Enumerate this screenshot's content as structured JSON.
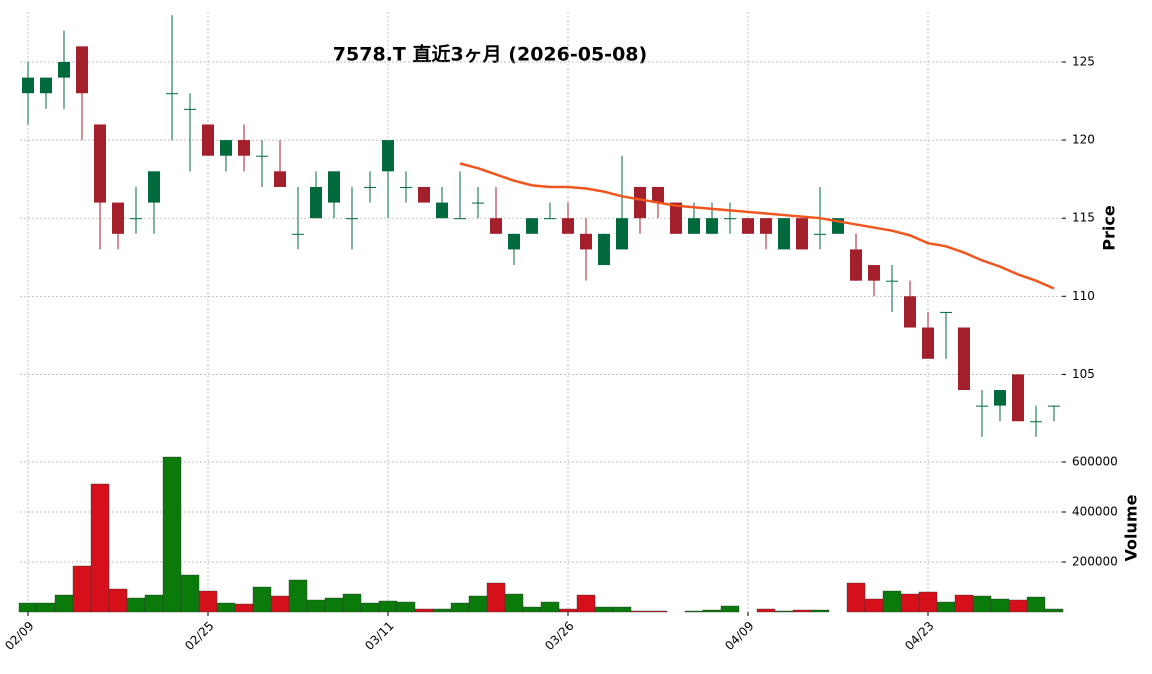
{
  "chart_data": {
    "type": "candlestick",
    "title": "7578.T  直近3ヶ月  (2026-05-08)",
    "categories": [
      "02/09",
      null,
      null,
      null,
      null,
      null,
      null,
      null,
      null,
      null,
      "02/25",
      null,
      null,
      null,
      null,
      null,
      null,
      null,
      null,
      null,
      "03/11",
      null,
      null,
      null,
      null,
      null,
      null,
      null,
      null,
      null,
      "03/26",
      null,
      null,
      null,
      null,
      null,
      null,
      null,
      null,
      null,
      "04/09",
      null,
      null,
      null,
      null,
      null,
      null,
      null,
      null,
      null,
      "04/23",
      null,
      null,
      null,
      null,
      null,
      null,
      null
    ],
    "open": [
      123,
      123,
      124,
      126,
      121,
      116,
      115,
      116,
      123,
      122,
      121,
      119,
      120,
      119,
      118,
      114,
      115,
      116,
      115,
      117,
      118,
      117,
      117,
      115,
      115,
      116,
      115,
      113,
      114,
      115,
      115,
      114,
      112,
      113,
      117,
      117,
      116,
      114,
      114,
      115,
      115,
      115,
      113,
      115,
      114,
      114,
      113,
      112,
      111,
      110,
      108,
      109,
      108,
      103,
      103,
      105,
      102,
      103
    ],
    "high": [
      125,
      124,
      127,
      126,
      121,
      116,
      117,
      118,
      128,
      123,
      121,
      120,
      121,
      120,
      120,
      117,
      118,
      118,
      117,
      118,
      120,
      118,
      117,
      117,
      118,
      117,
      117,
      114,
      115,
      116,
      116,
      115,
      114,
      119,
      117,
      117,
      116,
      116,
      116,
      116,
      115,
      115,
      115,
      115,
      117,
      115,
      114,
      112,
      112,
      111,
      109,
      109,
      108,
      104,
      104,
      105,
      103,
      103
    ],
    "low": [
      121,
      122,
      122,
      120,
      113,
      113,
      114,
      114,
      120,
      118,
      119,
      118,
      118,
      117,
      117,
      113,
      115,
      115,
      113,
      116,
      115,
      116,
      116,
      115,
      115,
      115,
      114,
      112,
      114,
      115,
      114,
      111,
      112,
      113,
      114,
      115,
      114,
      114,
      114,
      114,
      114,
      113,
      113,
      113,
      113,
      114,
      111,
      110,
      109,
      108,
      106,
      106,
      104,
      101,
      102,
      102,
      101,
      102
    ],
    "close": [
      124,
      124,
      125,
      123,
      116,
      114,
      115,
      118,
      123,
      122,
      119,
      120,
      119,
      119,
      117,
      114,
      117,
      118,
      115,
      117,
      120,
      117,
      116,
      116,
      115,
      116,
      114,
      114,
      115,
      115,
      114,
      113,
      114,
      115,
      115,
      116,
      114,
      115,
      115,
      115,
      114,
      114,
      115,
      113,
      114,
      115,
      111,
      111,
      111,
      108,
      106,
      109,
      104,
      103,
      104,
      102,
      102,
      103
    ],
    "ma": {
      "color": "#f0561e",
      "values": [
        null,
        null,
        null,
        null,
        null,
        null,
        null,
        null,
        null,
        null,
        null,
        null,
        null,
        null,
        null,
        null,
        null,
        null,
        null,
        null,
        null,
        null,
        null,
        null,
        118.5,
        118.2,
        117.8,
        117.4,
        117.1,
        117.0,
        117.0,
        116.9,
        116.7,
        116.4,
        116.2,
        116.0,
        115.8,
        115.7,
        115.6,
        115.5,
        115.4,
        115.3,
        115.2,
        115.1,
        115.0,
        114.8,
        114.6,
        114.4,
        114.2,
        113.9,
        113.4,
        113.2,
        112.8,
        112.3,
        111.9,
        111.4,
        111.0,
        110.5
      ]
    },
    "volume": [
      36000,
      36000,
      68000,
      184000,
      512000,
      92000,
      56000,
      68000,
      620000,
      148000,
      84000,
      36000,
      32000,
      100000,
      64000,
      128000,
      48000,
      56000,
      72000,
      36000,
      44000,
      40000,
      12000,
      12000,
      36000,
      64000,
      116000,
      72000,
      20000,
      40000,
      12000,
      68000,
      20000,
      20000,
      4000,
      4000,
      0,
      4000,
      8000,
      24000,
      0,
      12000,
      4000,
      8000,
      8000,
      0,
      116000,
      52000,
      84000,
      72000,
      80000,
      40000,
      68000,
      64000,
      52000,
      48000,
      60000,
      12000
    ],
    "ylim": [
      100.8,
      128.2
    ],
    "yticks": [
      105,
      110,
      115,
      120,
      125
    ],
    "volume_ylim": [
      0,
      676000
    ],
    "volume_yticks": [
      200000,
      400000,
      600000
    ],
    "y_label": "Price",
    "volume_label": "Volume",
    "up_color": "#006a3c",
    "down_color": "#a31f2b",
    "volume_up_color": "#0a7a0a",
    "volume_down_color": "#d6101a",
    "grid": true
  }
}
